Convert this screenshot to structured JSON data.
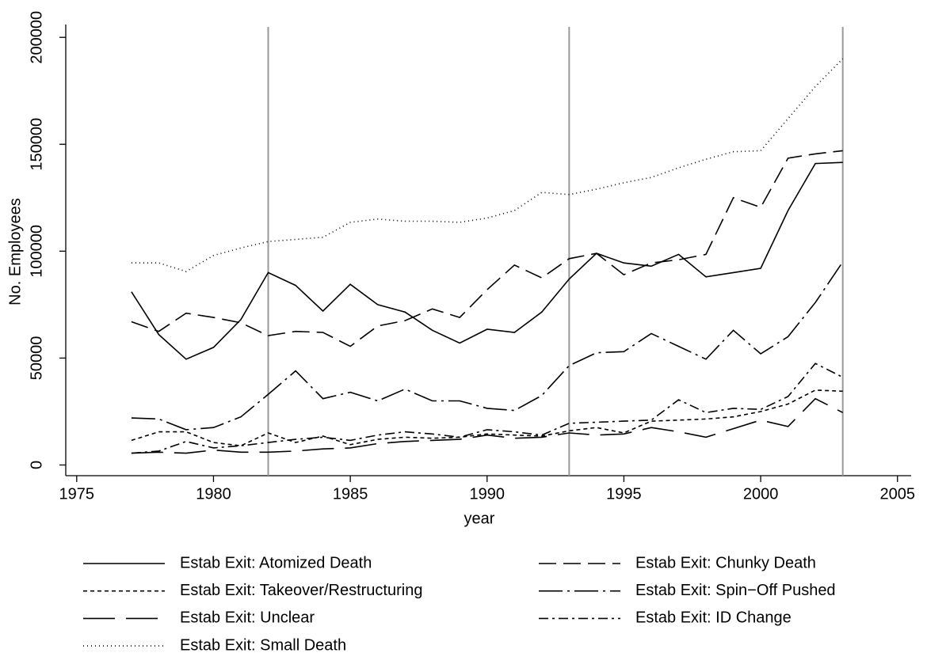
{
  "chart_data": {
    "type": "line",
    "x_label": "year",
    "y_label": "No. Employees",
    "x": [
      1977,
      1978,
      1979,
      1980,
      1981,
      1982,
      1983,
      1984,
      1985,
      1986,
      1987,
      1988,
      1989,
      1990,
      1991,
      1992,
      1993,
      1994,
      1995,
      1996,
      1997,
      1998,
      1999,
      2000,
      2001,
      2002,
      2003
    ],
    "xlim": [
      1974.6,
      2005.5
    ],
    "xticks": [
      1975,
      1980,
      1985,
      1990,
      1995,
      2000,
      2005
    ],
    "ylim": [
      -5000,
      206000
    ],
    "yticks": [
      0,
      50000,
      100000,
      150000,
      200000
    ],
    "vlines": [
      1982,
      1993,
      2003
    ],
    "vline_color": "#999999",
    "series": [
      {
        "name": "Estab Exit: Atomized Death",
        "color": "#000000",
        "dash": "none",
        "values": [
          81000,
          61000,
          49500,
          55000,
          68000,
          90000,
          84000,
          72000,
          84500,
          75000,
          71500,
          63000,
          57000,
          63500,
          62000,
          71500,
          87000,
          99000,
          94500,
          93000,
          98500,
          88000,
          90000,
          92000,
          119000,
          141000,
          141500
        ]
      },
      {
        "name": "Estab Exit: Chunky Death",
        "color": "#000000",
        "dash": "22,9",
        "values": [
          67000,
          62500,
          71000,
          69000,
          66500,
          60500,
          62500,
          62000,
          55500,
          65000,
          67500,
          73000,
          69000,
          82000,
          93500,
          87500,
          96500,
          99000,
          89000,
          94500,
          96000,
          98500,
          125000,
          120500,
          143500,
          145500,
          147000
        ]
      },
      {
        "name": "Estab Exit: Takeover/Restructuring",
        "color": "#000000",
        "dash": "5,4",
        "values": [
          11500,
          15500,
          15500,
          10500,
          9000,
          15000,
          10500,
          13500,
          9500,
          12000,
          13000,
          12500,
          13000,
          14500,
          14000,
          13500,
          16000,
          17500,
          15000,
          20500,
          21000,
          21500,
          22500,
          25000,
          28500,
          35000,
          34500
        ]
      },
      {
        "name": "Estab Exit: Spin−Off Pushed",
        "color": "#000000",
        "dash": "30,6,3,6",
        "values": [
          22000,
          21500,
          16500,
          17500,
          22500,
          33000,
          44000,
          31000,
          34000,
          30000,
          35500,
          30000,
          30000,
          26500,
          25500,
          32500,
          46500,
          52500,
          53000,
          61500,
          55500,
          49500,
          63000,
          52000,
          60000,
          76000,
          95000
        ]
      },
      {
        "name": "Estab Exit: Unclear",
        "color": "#000000",
        "dash": "40,14",
        "values": [
          5500,
          6000,
          5500,
          7000,
          6000,
          6000,
          6500,
          7500,
          8000,
          10000,
          11000,
          11500,
          12000,
          14000,
          12500,
          13000,
          15000,
          14000,
          14500,
          17500,
          15500,
          13000,
          17000,
          21000,
          18000,
          31000,
          24500
        ]
      },
      {
        "name": "Estab Exit: ID Change",
        "color": "#000000",
        "dash": "12,5,3,5",
        "values": [
          5500,
          6500,
          11000,
          8000,
          9000,
          10500,
          12000,
          13000,
          11500,
          14000,
          15500,
          14500,
          13000,
          16500,
          15500,
          14000,
          19500,
          20000,
          20500,
          21000,
          30500,
          24500,
          26500,
          26000,
          32000,
          47500,
          41000
        ]
      },
      {
        "name": "Estab Exit: Small Death",
        "color": "#000000",
        "dash": "1,4",
        "values": [
          94500,
          94500,
          90500,
          98000,
          101500,
          104500,
          105500,
          106500,
          113500,
          115000,
          114000,
          114000,
          113500,
          115500,
          119000,
          127500,
          126500,
          129000,
          132000,
          134500,
          139000,
          143000,
          146500,
          147000,
          162000,
          177000,
          190000
        ]
      }
    ]
  }
}
